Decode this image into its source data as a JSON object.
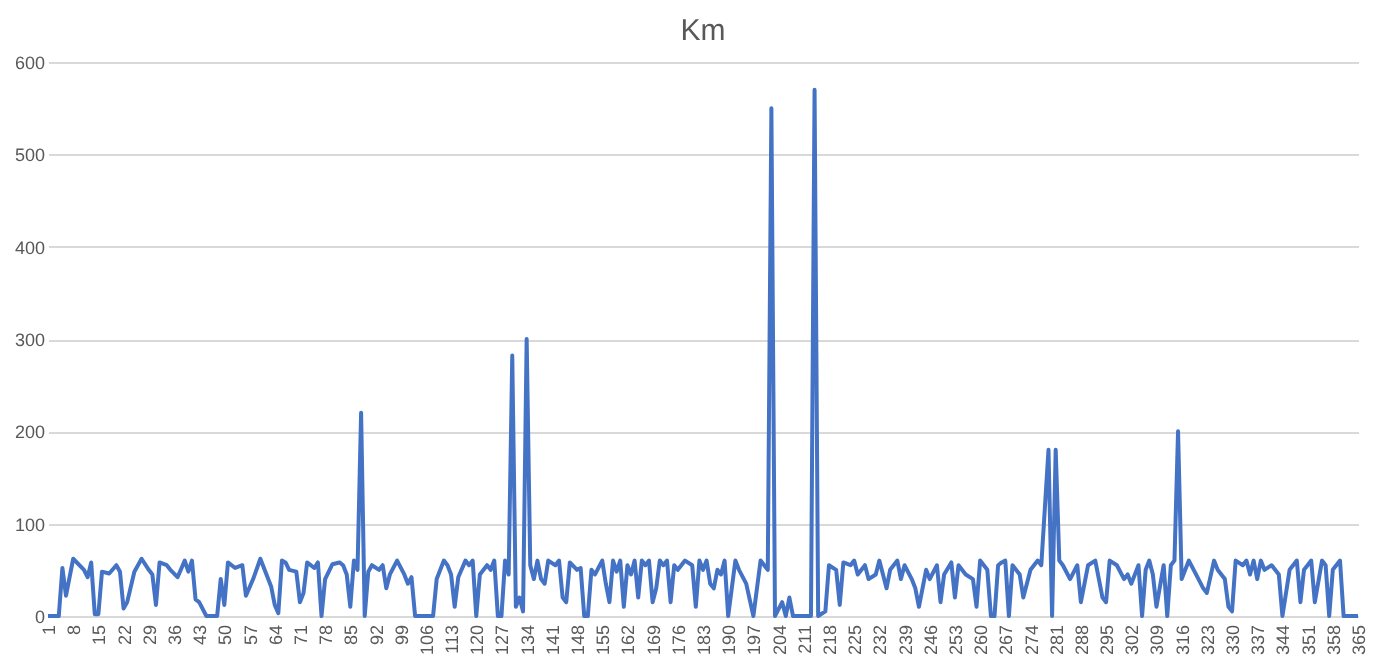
{
  "chart_data": {
    "type": "line",
    "title": "Km",
    "x": [
      1,
      4,
      5,
      6,
      8,
      11,
      12,
      13,
      14,
      15,
      16,
      18,
      20,
      21,
      22,
      23,
      25,
      27,
      29,
      30,
      31,
      32,
      34,
      35,
      37,
      39,
      40,
      41,
      42,
      43,
      45,
      48,
      49,
      50,
      51,
      53,
      55,
      56,
      58,
      60,
      62,
      63,
      64,
      65,
      66,
      67,
      68,
      70,
      71,
      72,
      73,
      75,
      76,
      77,
      78,
      80,
      82,
      83,
      84,
      85,
      86,
      87,
      88,
      89,
      90,
      91,
      93,
      94,
      95,
      96,
      98,
      100,
      101,
      102,
      103,
      108,
      109,
      111,
      112,
      113,
      114,
      115,
      117,
      118,
      119,
      120,
      121,
      123,
      124,
      125,
      126,
      127,
      128,
      129,
      130,
      131,
      132,
      133,
      134,
      135,
      136,
      137,
      138,
      139,
      140,
      142,
      143,
      144,
      145,
      146,
      148,
      149,
      150,
      151,
      152,
      153,
      155,
      156,
      157,
      158,
      159,
      160,
      161,
      162,
      163,
      164,
      165,
      166,
      167,
      168,
      169,
      170,
      171,
      172,
      173,
      174,
      175,
      176,
      178,
      180,
      181,
      182,
      183,
      184,
      185,
      186,
      187,
      188,
      189,
      190,
      191,
      192,
      193,
      195,
      197,
      199,
      201,
      202,
      203,
      205,
      206,
      207,
      208,
      213,
      214,
      215,
      217,
      218,
      220,
      221,
      222,
      224,
      225,
      226,
      228,
      229,
      231,
      232,
      234,
      235,
      237,
      238,
      239,
      241,
      242,
      243,
      245,
      246,
      248,
      249,
      250,
      252,
      253,
      254,
      256,
      258,
      259,
      260,
      262,
      263,
      264,
      265,
      266,
      267,
      268,
      269,
      271,
      272,
      274,
      276,
      277,
      279,
      280,
      281,
      282,
      283,
      285,
      287,
      288,
      290,
      292,
      294,
      295,
      296,
      298,
      300,
      301,
      302,
      304,
      305,
      306,
      307,
      308,
      309,
      311,
      312,
      313,
      314,
      315,
      316,
      318,
      320,
      322,
      323,
      325,
      326,
      328,
      329,
      330,
      331,
      333,
      334,
      335,
      336,
      337,
      338,
      339,
      341,
      343,
      344,
      346,
      348,
      349,
      350,
      351,
      352,
      353,
      355,
      356,
      357,
      358,
      360,
      361,
      365
    ],
    "values": [
      0,
      0,
      52,
      22,
      62,
      50,
      42,
      58,
      2,
      2,
      48,
      46,
      55,
      48,
      8,
      15,
      48,
      62,
      50,
      45,
      12,
      58,
      55,
      50,
      42,
      60,
      48,
      60,
      18,
      15,
      0,
      0,
      40,
      12,
      58,
      52,
      55,
      22,
      40,
      62,
      42,
      32,
      12,
      3,
      60,
      58,
      50,
      48,
      15,
      25,
      58,
      52,
      58,
      0,
      40,
      56,
      58,
      55,
      45,
      10,
      60,
      50,
      220,
      0,
      48,
      55,
      50,
      55,
      30,
      45,
      60,
      45,
      35,
      42,
      0,
      0,
      40,
      60,
      55,
      45,
      10,
      42,
      60,
      55,
      60,
      0,
      45,
      55,
      50,
      60,
      0,
      0,
      60,
      45,
      282,
      10,
      20,
      5,
      300,
      55,
      40,
      60,
      40,
      35,
      60,
      55,
      60,
      20,
      15,
      58,
      50,
      52,
      0,
      0,
      50,
      45,
      60,
      35,
      15,
      60,
      48,
      60,
      10,
      55,
      45,
      60,
      20,
      60,
      55,
      60,
      15,
      30,
      60,
      55,
      60,
      15,
      55,
      50,
      60,
      55,
      10,
      60,
      50,
      60,
      35,
      30,
      50,
      45,
      60,
      0,
      30,
      60,
      50,
      35,
      0,
      60,
      50,
      550,
      0,
      15,
      0,
      20,
      0,
      0,
      570,
      0,
      5,
      55,
      50,
      12,
      58,
      55,
      60,
      45,
      55,
      40,
      45,
      60,
      30,
      50,
      60,
      40,
      55,
      40,
      30,
      10,
      50,
      40,
      55,
      15,
      45,
      58,
      20,
      55,
      45,
      40,
      10,
      60,
      50,
      0,
      0,
      55,
      58,
      60,
      0,
      55,
      45,
      20,
      50,
      60,
      55,
      180,
      0,
      180,
      60,
      55,
      40,
      55,
      15,
      55,
      60,
      20,
      15,
      60,
      55,
      40,
      45,
      35,
      55,
      0,
      50,
      60,
      45,
      10,
      55,
      0,
      55,
      60,
      200,
      40,
      60,
      45,
      30,
      25,
      60,
      50,
      40,
      10,
      5,
      60,
      55,
      60,
      45,
      60,
      40,
      60,
      50,
      55,
      45,
      0,
      50,
      60,
      15,
      50,
      55,
      60,
      15,
      60,
      55,
      0,
      50,
      60,
      0,
      0
    ],
    "color": "#4472c4",
    "xlim": [
      1,
      365
    ],
    "xticks": [
      1,
      8,
      15,
      22,
      29,
      36,
      43,
      50,
      57,
      64,
      71,
      78,
      85,
      92,
      99,
      106,
      113,
      120,
      127,
      134,
      141,
      148,
      155,
      162,
      169,
      176,
      183,
      190,
      197,
      204,
      211,
      218,
      225,
      232,
      239,
      246,
      253,
      260,
      267,
      274,
      281,
      288,
      295,
      302,
      309,
      316,
      323,
      330,
      337,
      344,
      351,
      358,
      365
    ],
    "ylim": [
      0,
      600
    ],
    "yticks": [
      0,
      100,
      200,
      300,
      400,
      500,
      600
    ],
    "grid": "y"
  }
}
